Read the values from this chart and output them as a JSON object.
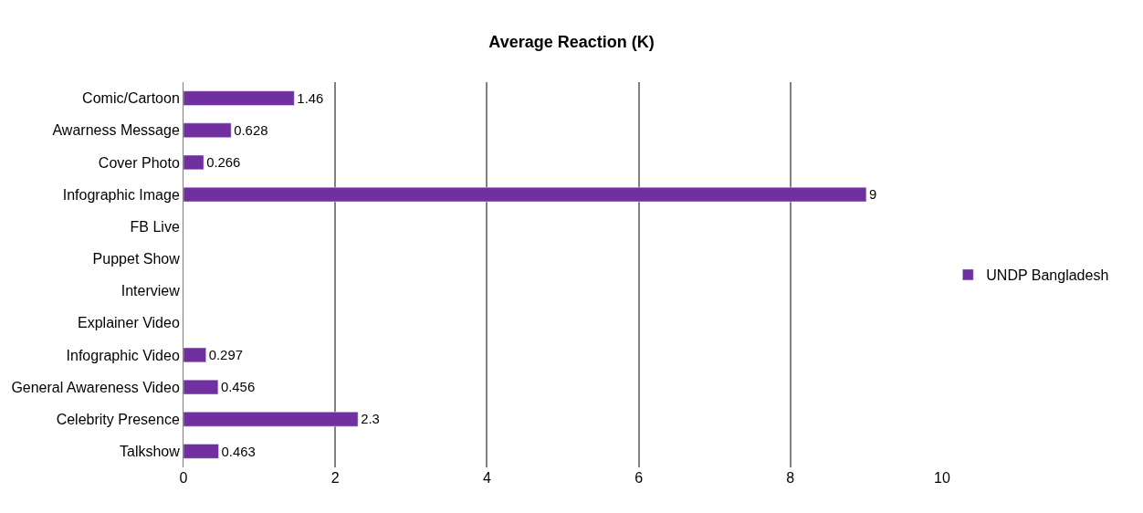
{
  "chart_data": {
    "type": "bar",
    "orientation": "horizontal",
    "title": "Average Reaction (K)",
    "categories": [
      "Comic/Cartoon",
      "Awarness Message",
      "Cover Photo",
      "Infographic Image",
      "FB Live",
      "Puppet Show",
      "Interview",
      "Explainer Video",
      "Infographic Video",
      "General Awareness Video",
      "Celebrity Presence",
      "Talkshow"
    ],
    "series": [
      {
        "name": "UNDP Bangladesh",
        "color": "#7030a0",
        "values": [
          1.46,
          0.628,
          0.266,
          9,
          null,
          null,
          null,
          null,
          0.297,
          0.456,
          2.3,
          0.463
        ]
      }
    ],
    "xlim": [
      0,
      10
    ],
    "xticks": [
      0,
      2,
      4,
      6,
      8,
      10
    ],
    "grid": "x",
    "legend": "right",
    "data_labels": true
  }
}
